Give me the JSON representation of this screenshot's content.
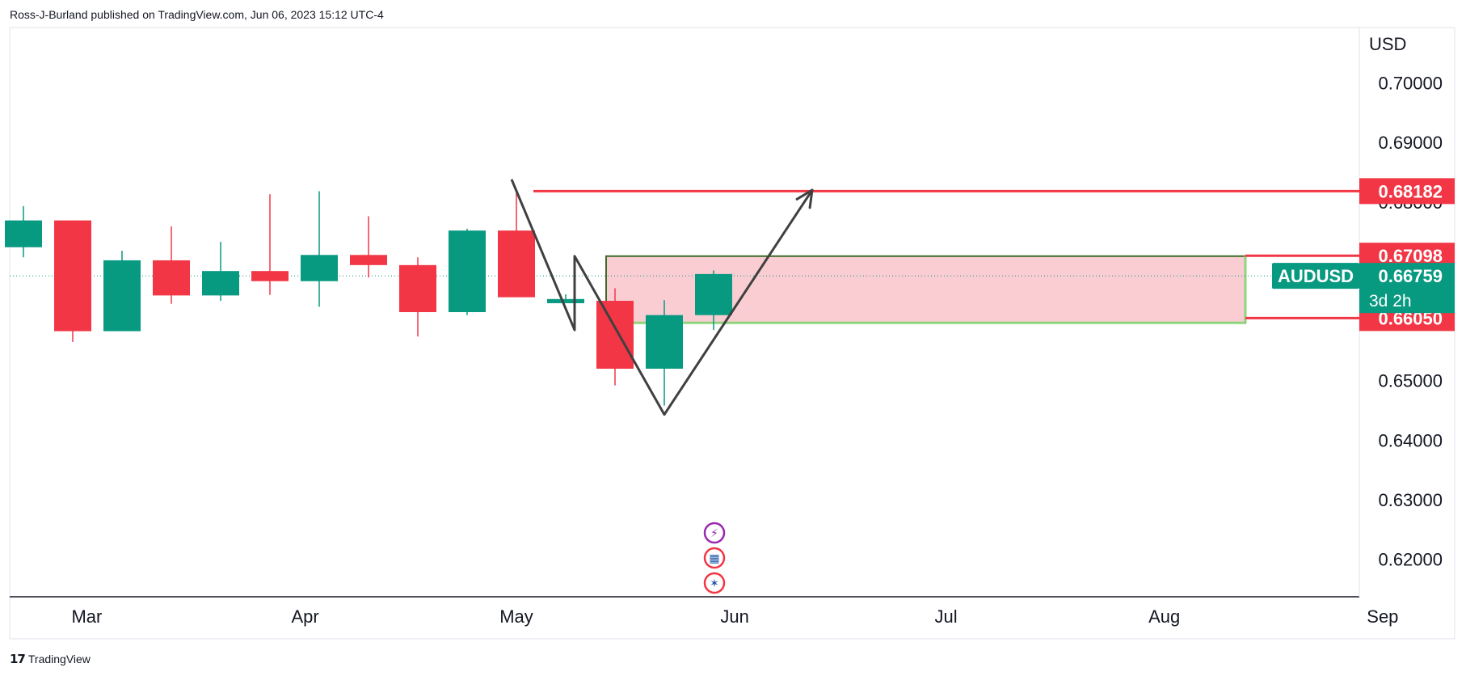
{
  "header": {
    "published": "Ross-J-Burland published on TradingView.com, Jun 06, 2023 15:12 UTC-4"
  },
  "footer": {
    "brand": "TradingView",
    "logo_icon": "tradingview-logo-icon"
  },
  "colors": {
    "up": "#089981",
    "down": "#f23645",
    "zone_fill": "#f9cdd2",
    "zone_border": "#3f6b2a",
    "zone_edge": "#8fd57c",
    "arrow": "#404040",
    "level_line": "#f23645"
  },
  "chart_data": {
    "type": "candlestick",
    "symbol": "AUDUSD",
    "currency": "USD",
    "x_labels": [
      "Mar",
      "Apr",
      "May",
      "Jun",
      "Jul",
      "Aug",
      "Sep"
    ],
    "y_ticks": [
      "0.70000",
      "0.69000",
      "0.68000",
      "0.67000",
      "0.66000",
      "0.65000",
      "0.64000",
      "0.63000",
      "0.62000"
    ],
    "ylim": [
      0.6137,
      0.7093
    ],
    "candles": [
      {
        "week": "2023-02-20",
        "open": 0.6724,
        "high": 0.6793,
        "low": 0.6707,
        "close": 0.6769
      },
      {
        "week": "2023-02-27",
        "open": 0.6769,
        "high": 0.6769,
        "low": 0.6565,
        "close": 0.6583
      },
      {
        "week": "2023-03-06",
        "open": 0.6583,
        "high": 0.6718,
        "low": 0.6583,
        "close": 0.6702
      },
      {
        "week": "2023-03-13",
        "open": 0.6702,
        "high": 0.6759,
        "low": 0.6629,
        "close": 0.6643
      },
      {
        "week": "2023-03-20",
        "open": 0.6643,
        "high": 0.6733,
        "low": 0.6634,
        "close": 0.6684
      },
      {
        "week": "2023-03-27",
        "open": 0.6684,
        "high": 0.6813,
        "low": 0.6644,
        "close": 0.6667
      },
      {
        "week": "2023-04-03",
        "open": 0.6667,
        "high": 0.6818,
        "low": 0.6624,
        "close": 0.6711
      },
      {
        "week": "2023-04-10",
        "open": 0.6711,
        "high": 0.6776,
        "low": 0.6673,
        "close": 0.6694
      },
      {
        "week": "2023-04-17",
        "open": 0.6694,
        "high": 0.6707,
        "low": 0.6574,
        "close": 0.6615
      },
      {
        "week": "2023-04-24",
        "open": 0.6615,
        "high": 0.6755,
        "low": 0.661,
        "close": 0.6752
      },
      {
        "week": "2023-05-01",
        "open": 0.6752,
        "high": 0.6818,
        "low": 0.6643,
        "close": 0.664
      },
      {
        "week": "2023-05-08",
        "open": 0.663,
        "high": 0.6645,
        "low": 0.663,
        "close": 0.6637
      },
      {
        "week": "2023-05-15",
        "open": 0.6634,
        "high": 0.6655,
        "low": 0.6492,
        "close": 0.652
      },
      {
        "week": "2023-05-22",
        "open": 0.652,
        "high": 0.6635,
        "low": 0.6458,
        "close": 0.661
      },
      {
        "week": "2023-05-29",
        "open": 0.661,
        "high": 0.6685,
        "low": 0.6585,
        "close": 0.6679
      }
    ],
    "levels": [
      {
        "price": 0.68182,
        "label": "0.68182"
      },
      {
        "price": 0.67098,
        "label": "0.67098"
      },
      {
        "price": 0.6605,
        "label": "0.66050"
      }
    ],
    "last_price": {
      "price": 0.66759,
      "label": "0.66759",
      "countdown": "3d 2h"
    },
    "zone": {
      "top": 0.6709,
      "bottom": 0.6597
    },
    "arrow_path": [
      {
        "week": "2023-05-01",
        "price": 0.6838
      },
      {
        "week": "2023-05-08",
        "price": 0.6585
      },
      {
        "week": "2023-05-08",
        "price": 0.6709
      },
      {
        "week": "2023-05-22",
        "price": 0.6443
      },
      {
        "week": "2023-06-12",
        "price": 0.682
      }
    ],
    "event_icons": [
      "lightning-event-icon",
      "us-flag-event-icon",
      "au-flag-event-icon"
    ]
  }
}
